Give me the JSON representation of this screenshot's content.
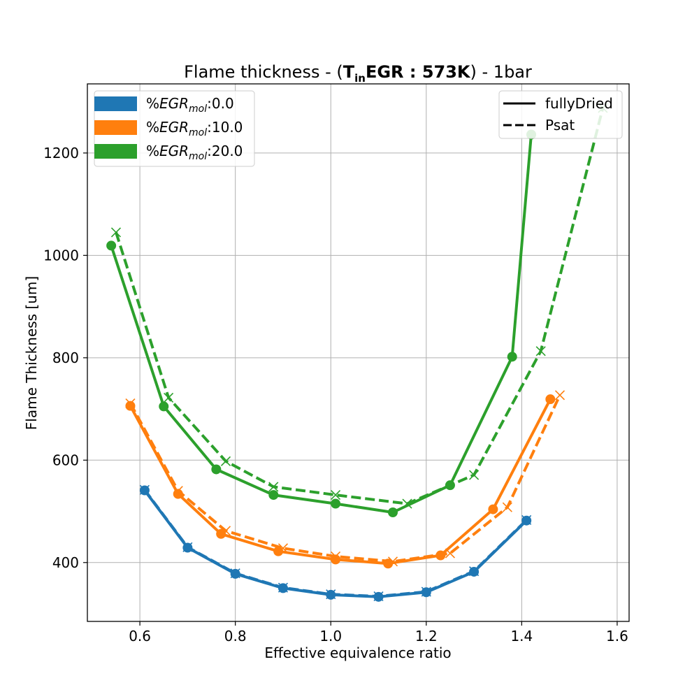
{
  "chart_data": {
    "type": "line",
    "title": {
      "prefix": "Flame thickness - (",
      "bold_main": "T",
      "bold_sub": "in",
      "bold_rest": "EGR : 573K",
      "suffix": ") - 1bar"
    },
    "xlabel": "Effective equivalence ratio",
    "ylabel": "Flame Thickness [um]",
    "xlim": [
      0.49,
      1.625
    ],
    "ylim": [
      285,
      1335
    ],
    "xticks": [
      0.6,
      0.8,
      1.0,
      1.2,
      1.4,
      1.6
    ],
    "xtick_labels": [
      "0.6",
      "0.8",
      "1.0",
      "1.2",
      "1.4",
      "1.6"
    ],
    "yticks": [
      400,
      600,
      800,
      1000,
      1200
    ],
    "ytick_labels": [
      "400",
      "600",
      "800",
      "1000",
      "1200"
    ],
    "grid": true,
    "legend_egr": {
      "placement": "top-left",
      "entries": [
        {
          "prefix": "%",
          "var": "EGR",
          "sub": "mol",
          "value": ":0.0",
          "color": "#1f77b4"
        },
        {
          "prefix": "%",
          "var": "EGR",
          "sub": "mol",
          "value": ":10.0",
          "color": "#ff7f0e"
        },
        {
          "prefix": "%",
          "var": "EGR",
          "sub": "mol",
          "value": ":20.0",
          "color": "#2ca02c"
        }
      ]
    },
    "legend_style": {
      "placement": "top-right",
      "entries": [
        {
          "label": "fullyDried",
          "dash": "solid"
        },
        {
          "label": "Psat",
          "dash": "dashed"
        }
      ]
    },
    "series": [
      {
        "egr": "0.0",
        "style": "fullyDried",
        "color": "#1f77b4",
        "marker": "circle",
        "x": [
          0.61,
          0.7,
          0.8,
          0.9,
          1.0,
          1.1,
          1.2,
          1.3,
          1.41
        ],
        "y": [
          541,
          429,
          378,
          350,
          337,
          333,
          342,
          382,
          482
        ]
      },
      {
        "egr": "0.0",
        "style": "Psat",
        "color": "#1f77b4",
        "marker": "x",
        "x": [
          0.61,
          0.7,
          0.8,
          0.9,
          1.0,
          1.1,
          1.2,
          1.3,
          1.41
        ],
        "y": [
          542,
          430,
          379,
          351,
          338,
          334,
          343,
          383,
          483
        ]
      },
      {
        "egr": "10.0",
        "style": "fullyDried",
        "color": "#ff7f0e",
        "marker": "circle",
        "x": [
          0.58,
          0.68,
          0.77,
          0.89,
          1.01,
          1.12,
          1.23,
          1.34,
          1.46
        ],
        "y": [
          706,
          534,
          456,
          422,
          406,
          398,
          414,
          504,
          719
        ]
      },
      {
        "egr": "10.0",
        "style": "Psat",
        "color": "#ff7f0e",
        "marker": "x",
        "x": [
          0.58,
          0.68,
          0.78,
          0.9,
          1.01,
          1.13,
          1.25,
          1.37,
          1.48
        ],
        "y": [
          711,
          540,
          462,
          428,
          412,
          402,
          418,
          508,
          727
        ]
      },
      {
        "egr": "20.0",
        "style": "fullyDried",
        "color": "#2ca02c",
        "marker": "circle",
        "x": [
          0.54,
          0.65,
          0.76,
          0.88,
          1.01,
          1.13,
          1.25,
          1.38,
          1.42
        ],
        "y": [
          1019,
          705,
          582,
          532,
          515,
          498,
          551,
          802,
          1236
        ]
      },
      {
        "egr": "20.0",
        "style": "Psat",
        "color": "#2ca02c",
        "marker": "x",
        "x": [
          0.55,
          0.66,
          0.78,
          0.88,
          1.01,
          1.16,
          1.3,
          1.44,
          1.57
        ],
        "y": [
          1045,
          722,
          598,
          548,
          532,
          515,
          571,
          813,
          1288
        ]
      }
    ]
  }
}
